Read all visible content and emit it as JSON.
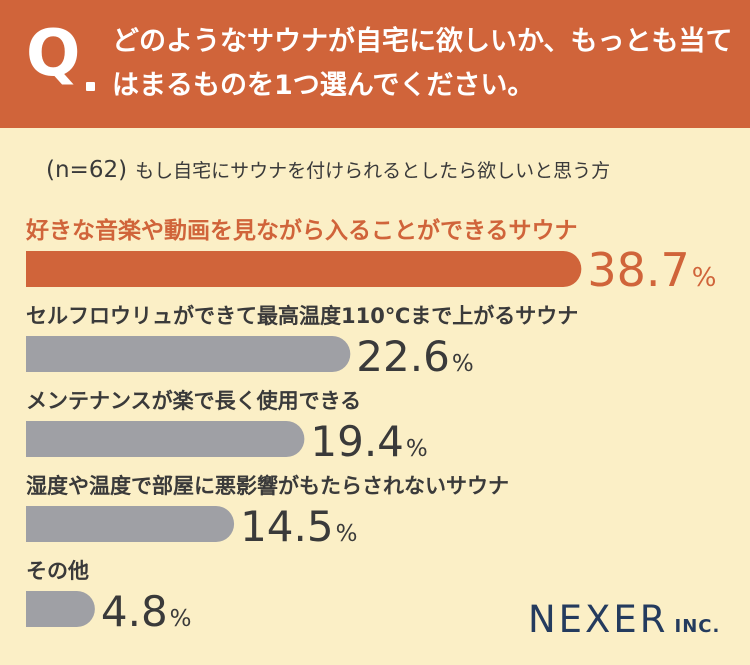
{
  "header": {
    "q_label": "Q",
    "question": "どのようなサウナが自宅に欲しいか、もっとも当てはまるものを1つ選んでください。"
  },
  "subtitle": {
    "n": "(n=62)",
    "text": "もし自宅にサウナを付けられるとしたら欲しいと思う方"
  },
  "logo": {
    "name": "NEXER",
    "suffix": "INC."
  },
  "colors": {
    "highlight": "#d0643a",
    "bar": "#9fa0a5",
    "text": "#3a3a3a",
    "background": "#fbefc6"
  },
  "chart_data": {
    "type": "bar",
    "orientation": "horizontal",
    "unit": "%",
    "categories": [
      "好きな音楽や動画を見ながら入ることができるサウナ",
      "セルフロウリュができて最高温度110℃まで上がるサウナ",
      "メンテナンスが楽で長く使用できる",
      "湿度や温度で部屋に悪影響がもたらされないサウナ",
      "その他"
    ],
    "values": [
      38.7,
      22.6,
      19.4,
      14.5,
      4.8
    ],
    "value_labels": [
      "38.7",
      "22.6",
      "19.4",
      "14.5",
      "4.8"
    ],
    "highlight_index": 0
  }
}
